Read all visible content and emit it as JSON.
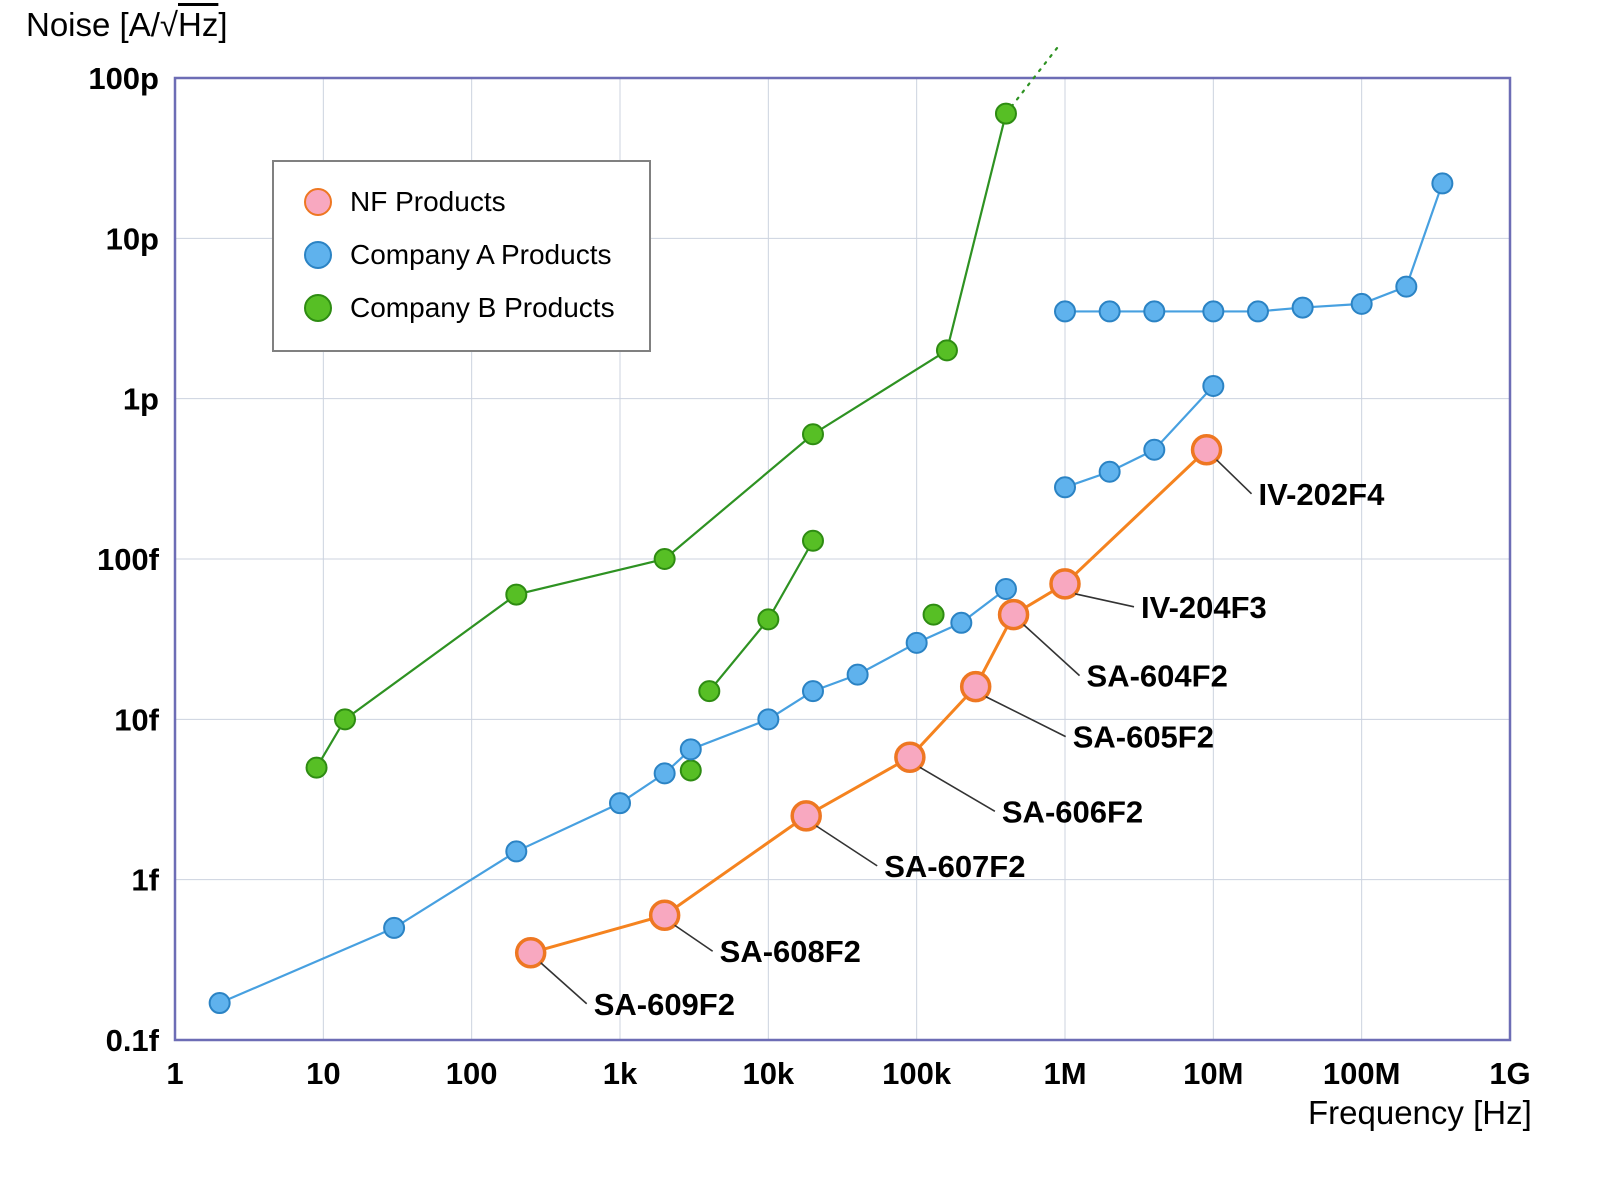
{
  "chart_data": {
    "type": "line",
    "xscale": "log",
    "yscale": "log",
    "grid": true,
    "grid_color": "#ccd3df",
    "border_color": "#6d6db5",
    "title": {
      "prefix": "Noise [A/√",
      "overline": "Hz",
      "suffix": "]"
    },
    "x_axis": {
      "label": "Frequency [Hz]",
      "min": 1,
      "max": 1000000000,
      "ticks": [
        {
          "v": 1,
          "label": "1"
        },
        {
          "v": 10,
          "label": "10"
        },
        {
          "v": 100,
          "label": "100"
        },
        {
          "v": 1000,
          "label": "1k"
        },
        {
          "v": 10000,
          "label": "10k"
        },
        {
          "v": 100000,
          "label": "100k"
        },
        {
          "v": 1000000,
          "label": "1M"
        },
        {
          "v": 10000000,
          "label": "10M"
        },
        {
          "v": 100000000,
          "label": "100M"
        },
        {
          "v": 1000000000,
          "label": "1G"
        }
      ]
    },
    "y_axis": {
      "label": "Noise [A/√Hz]",
      "min": 1e-16,
      "max": 1e-10,
      "ticks": [
        {
          "v": 1e-10,
          "label": "100p"
        },
        {
          "v": 1e-11,
          "label": "10p"
        },
        {
          "v": 1e-12,
          "label": "1p"
        },
        {
          "v": 1e-13,
          "label": "100f"
        },
        {
          "v": 1e-14,
          "label": "10f"
        },
        {
          "v": 1e-15,
          "label": "1f"
        },
        {
          "v": 1e-16,
          "label": "0.1f"
        }
      ]
    },
    "legend": {
      "items": [
        {
          "label": "NF Products",
          "fill": "#f8a8c0",
          "stroke": "#ee7722"
        },
        {
          "label": "Company A Products",
          "fill": "#5fb2ed",
          "stroke": "#2b83c4"
        },
        {
          "label": "Company B Products",
          "fill": "#57bf25",
          "stroke": "#2e8c12"
        }
      ]
    },
    "series": [
      {
        "name": "NF Products",
        "line_color": "#f5831f",
        "line_width": 3,
        "marker_fill": "#f8a8c0",
        "marker_stroke": "#ee7722",
        "marker_stroke_width": 3.5,
        "marker_r": 14,
        "labeled_points": [
          {
            "x": 250,
            "y": 3.5e-16,
            "label": "SA-609F2",
            "dx": 63,
            "dy": 62
          },
          {
            "x": 2000,
            "y": 6e-16,
            "label": "SA-608F2",
            "dx": 55,
            "dy": 47
          },
          {
            "x": 18000,
            "y": 2.5e-15,
            "label": "SA-607F2",
            "dx": 78,
            "dy": 61
          },
          {
            "x": 90000,
            "y": 5.8e-15,
            "label": "SA-606F2",
            "dx": 92,
            "dy": 65
          },
          {
            "x": 250000,
            "y": 1.6e-14,
            "label": "SA-605F2",
            "dx": 97,
            "dy": 61
          },
          {
            "x": 450000,
            "y": 4.5e-14,
            "label": "SA-604F2",
            "dx": 73,
            "dy": 72
          },
          {
            "x": 1000000,
            "y": 7e-14,
            "label": "IV-204F3",
            "dx": 76,
            "dy": 34
          },
          {
            "x": 9000000,
            "y": 4.8e-13,
            "label": "IV-202F4",
            "dx": 52,
            "dy": 55
          }
        ]
      },
      {
        "name": "Company A Products",
        "line_color": "#47a0e0",
        "line_width": 2.2,
        "marker_fill": "#5fb2ed",
        "marker_stroke": "#2b83c4",
        "marker_stroke_width": 2,
        "marker_r": 10,
        "segments": [
          [
            [
              2,
              1.7e-16
            ],
            [
              30,
              5e-16
            ],
            [
              200,
              1.5e-15
            ],
            [
              1000,
              3e-15
            ],
            [
              2000,
              4.6e-15
            ],
            [
              3000,
              6.5e-15
            ],
            [
              10000,
              1e-14
            ],
            [
              20000,
              1.5e-14
            ],
            [
              40000,
              1.9e-14
            ],
            [
              100000,
              3e-14
            ],
            [
              200000,
              4e-14
            ],
            [
              400000,
              6.5e-14
            ]
          ],
          [
            [
              1000000,
              2.8e-13
            ],
            [
              2000000,
              3.5e-13
            ],
            [
              4000000,
              4.8e-13
            ],
            [
              10000000,
              1.2e-12
            ]
          ],
          [
            [
              1000000,
              3.5e-12
            ],
            [
              2000000,
              3.5e-12
            ],
            [
              4000000,
              3.5e-12
            ],
            [
              10000000,
              3.5e-12
            ],
            [
              20000000,
              3.5e-12
            ],
            [
              40000000,
              3.7e-12
            ],
            [
              100000000,
              3.9e-12
            ],
            [
              200000000,
              5e-12
            ],
            [
              350000000,
              2.2e-11
            ]
          ]
        ]
      },
      {
        "name": "Company B Products",
        "line_color": "#2e9222",
        "line_width": 2.2,
        "marker_fill": "#57bf25",
        "marker_stroke": "#2e8c12",
        "marker_stroke_width": 2,
        "marker_r": 10,
        "segments": [
          [
            [
              9,
              5e-15
            ],
            [
              14,
              1e-14
            ],
            [
              200,
              6e-14
            ],
            [
              2000,
              1e-13
            ],
            [
              20000,
              6e-13
            ],
            [
              160000,
              2e-12
            ],
            [
              400000,
              6e-11
            ]
          ],
          [
            [
              4000,
              1.5e-14
            ],
            [
              10000,
              4.2e-14
            ],
            [
              20000,
              1.3e-13
            ]
          ]
        ],
        "dashed_segment": [
          [
            400000,
            6e-11
          ],
          [
            890000,
            1.55e-10
          ]
        ],
        "isolated_points": [
          [
            3000,
            4.8e-15
          ],
          [
            130000,
            4.5e-14
          ]
        ]
      }
    ]
  }
}
